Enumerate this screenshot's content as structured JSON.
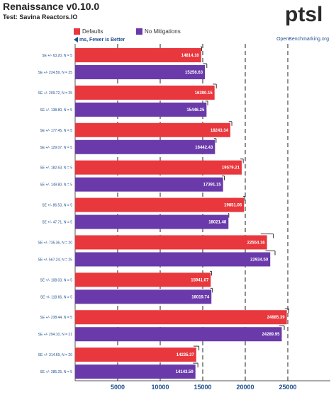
{
  "header": {
    "title": "Renaissance v0.10.0",
    "subtitle": "Test: Savina Reactors.IO",
    "logo_text": "ptsl",
    "ob_link": "OpenBenchmarking.org",
    "note": "ms, Fewer is Better"
  },
  "colors": {
    "defaults": "#e8373d",
    "no_mitigations": "#6a3aaa",
    "text_blue": "#1f4f8f"
  },
  "chart_data": {
    "type": "bar",
    "orientation": "horizontal",
    "title": "Renaissance v0.10.0",
    "subtitle": "Test: Savina Reactors.IO",
    "xlim": [
      0,
      30000
    ],
    "x_ticks": [
      5000,
      10000,
      15000,
      20000,
      25000
    ],
    "grid": true,
    "legend_position": "top-left",
    "series_names": [
      "Defaults",
      "No Mitigations"
    ],
    "groups": [
      {
        "bars": [
          {
            "series": "Defaults",
            "value": 14814.1,
            "label": "14814.10",
            "error": 63.2,
            "row_label": "SE +/- 63.20, N = 5"
          },
          {
            "series": "No Mitigations",
            "value": 15256.63,
            "label": "15256.63",
            "error": 224.59,
            "row_label": "SE +/- 224.59, N = 25"
          }
        ]
      },
      {
        "bars": [
          {
            "series": "Defaults",
            "value": 16390.15,
            "label": "16390.15",
            "error": 209.72,
            "row_label": "SE +/- 209.72, N = 25"
          },
          {
            "series": "No Mitigations",
            "value": 15446.25,
            "label": "15446.25",
            "error": 138.8,
            "row_label": "SE +/- 138.80, N = 5"
          }
        ]
      },
      {
        "bars": [
          {
            "series": "Defaults",
            "value": 18243.34,
            "label": "18243.34",
            "error": 177.45,
            "row_label": "SE +/- 177.45, N = 5"
          },
          {
            "series": "No Mitigations",
            "value": 16442.43,
            "label": "16442.43",
            "error": 129.07,
            "row_label": "SE +/- 129.07, N = 5"
          }
        ]
      },
      {
        "bars": [
          {
            "series": "Defaults",
            "value": 19579.21,
            "label": "19579.21",
            "error": 182.63,
            "row_label": "SE +/- 182.63, N = 5"
          },
          {
            "series": "No Mitigations",
            "value": 17391.15,
            "label": "17391.15",
            "error": 149.8,
            "row_label": "SE +/- 149.80, N = 5"
          }
        ]
      },
      {
        "bars": [
          {
            "series": "Defaults",
            "value": 19851.06,
            "label": "19851.06",
            "error": 86.53,
            "row_label": "SE +/- 86.53, N = 5"
          },
          {
            "series": "No Mitigations",
            "value": 18021.48,
            "label": "18021.48",
            "error": 47.71,
            "row_label": "SE +/- 47.71, N = 5"
          }
        ]
      },
      {
        "bars": [
          {
            "series": "Defaults",
            "value": 22554.16,
            "label": "22554.16",
            "error": 735.36,
            "row_label": "SE +/- 735.36, N = 20"
          },
          {
            "series": "No Mitigations",
            "value": 22934.5,
            "label": "22934.50",
            "error": 567.24,
            "row_label": "SE +/- 567.24, N = 25"
          }
        ]
      },
      {
        "bars": [
          {
            "series": "Defaults",
            "value": 15941.07,
            "label": "15941.07",
            "error": 108.03,
            "row_label": "SE +/- 108.03, N = 5"
          },
          {
            "series": "No Mitigations",
            "value": 16019.74,
            "label": "16019.74",
            "error": 118.66,
            "row_label": "SE +/- 118.66, N = 5"
          }
        ]
      },
      {
        "bars": [
          {
            "series": "Defaults",
            "value": 24885.39,
            "label": "24885.39",
            "error": 238.44,
            "row_label": "SE +/- 238.44, N = 5"
          },
          {
            "series": "No Mitigations",
            "value": 24289.95,
            "label": "24289.95",
            "error": 294.1,
            "row_label": "SE +/- 294.10, N = 21"
          }
        ]
      },
      {
        "bars": [
          {
            "series": "Defaults",
            "value": 14235.37,
            "label": "14235.37",
            "error": 314.69,
            "row_label": "SE +/- 314.69, N = 20"
          },
          {
            "series": "No Mitigations",
            "value": 14143.59,
            "label": "14143.59",
            "error": 285.25,
            "row_label": "SE +/- 285.25, N = 5"
          }
        ]
      }
    ]
  }
}
